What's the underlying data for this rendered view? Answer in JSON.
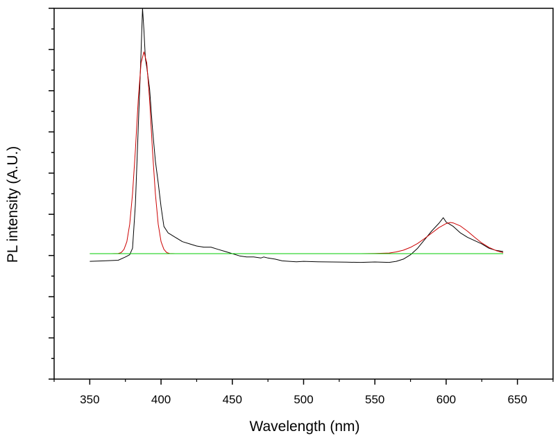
{
  "chart_data": {
    "type": "line",
    "title": "",
    "xlabel": "Wavelength (nm)",
    "ylabel": "PL intensity (A.U.)",
    "xlim": [
      325,
      675
    ],
    "ylim": [
      -0.55,
      1.15
    ],
    "x_ticks": [
      350,
      400,
      450,
      500,
      550,
      600,
      650
    ],
    "x_tick_labels": [
      "350",
      "400",
      "450",
      "500",
      "550",
      "600",
      "650"
    ],
    "y_tick_labels_shown": false,
    "grid": false,
    "legend": "none",
    "series": [
      {
        "color": "#000000",
        "x": [
          350,
          360,
          370,
          375,
          378,
          380,
          382,
          384,
          386,
          387,
          388,
          389,
          390,
          392,
          394,
          396,
          398,
          400,
          402,
          405,
          410,
          415,
          420,
          425,
          430,
          435,
          440,
          445,
          450,
          455,
          460,
          465,
          470,
          472,
          475,
          480,
          485,
          490,
          495,
          500,
          510,
          520,
          530,
          540,
          550,
          560,
          565,
          570,
          575,
          580,
          585,
          590,
          595,
          598,
          600,
          605,
          610,
          615,
          620,
          625,
          630,
          635,
          640
        ],
        "y": [
          -0.01,
          -0.008,
          -0.005,
          0.01,
          0.02,
          0.05,
          0.25,
          0.6,
          0.95,
          1.15,
          1.05,
          0.92,
          0.88,
          0.78,
          0.6,
          0.45,
          0.35,
          0.24,
          0.15,
          0.12,
          0.1,
          0.08,
          0.07,
          0.06,
          0.055,
          0.055,
          0.045,
          0.035,
          0.025,
          0.015,
          0.01,
          0.01,
          0.005,
          0.01,
          0.005,
          0.0,
          -0.008,
          -0.01,
          -0.012,
          -0.01,
          -0.012,
          -0.013,
          -0.014,
          -0.015,
          -0.013,
          -0.015,
          -0.01,
          0.0,
          0.02,
          0.05,
          0.09,
          0.13,
          0.165,
          0.19,
          0.17,
          0.15,
          0.12,
          0.1,
          0.085,
          0.07,
          0.05,
          0.04,
          0.035
        ]
      },
      {
        "color": "#cc0000",
        "x": [
          350,
          360,
          365,
          370,
          372,
          374,
          376,
          378,
          380,
          382,
          384,
          386,
          388,
          390,
          392,
          394,
          396,
          398,
          400,
          402,
          404,
          406,
          410,
          420,
          450,
          500,
          540,
          550,
          560,
          565,
          570,
          575,
          580,
          585,
          590,
          595,
          600,
          603,
          605,
          610,
          615,
          620,
          625,
          630,
          635,
          640
        ],
        "y": [
          0.025,
          0.025,
          0.025,
          0.026,
          0.03,
          0.045,
          0.08,
          0.16,
          0.3,
          0.5,
          0.73,
          0.9,
          0.95,
          0.9,
          0.73,
          0.5,
          0.3,
          0.16,
          0.08,
          0.045,
          0.03,
          0.026,
          0.025,
          0.025,
          0.025,
          0.025,
          0.025,
          0.026,
          0.028,
          0.033,
          0.041,
          0.054,
          0.072,
          0.095,
          0.12,
          0.145,
          0.163,
          0.168,
          0.166,
          0.152,
          0.128,
          0.1,
          0.074,
          0.054,
          0.039,
          0.03
        ]
      },
      {
        "color": "#00cc00",
        "x": [
          350,
          640
        ],
        "y": [
          0.025,
          0.025
        ]
      }
    ]
  }
}
